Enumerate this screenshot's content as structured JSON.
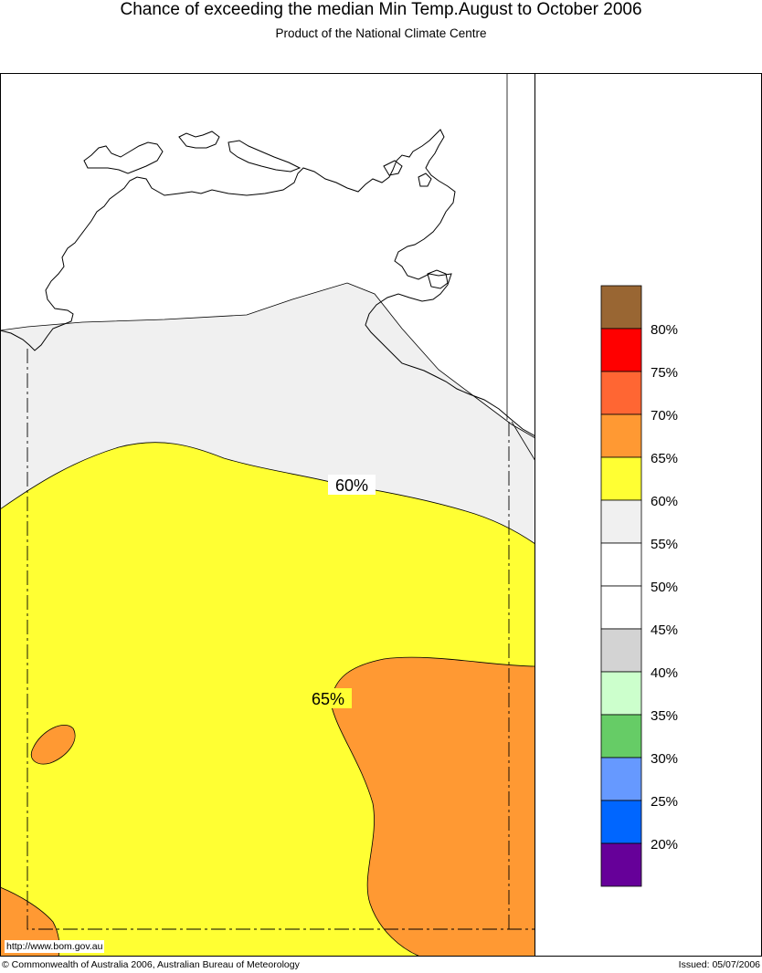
{
  "header": {
    "title": "Chance of exceeding the median Min Temp.August to October 2006",
    "subtitle": "Product of the National Climate Centre"
  },
  "map": {
    "contour_labels": [
      "60%",
      "65%"
    ],
    "zones": {
      "lt_55_color": "#ffffff",
      "55_60_color": "#f0f0f0",
      "60_65_color": "#ffff33",
      "65_70_color": "#ff9933"
    },
    "url": "http://www.bom.gov.au"
  },
  "legend": {
    "bins": [
      {
        "color": "#996633",
        "label": ""
      },
      {
        "color": "#ff0000",
        "label": "80%"
      },
      {
        "color": "#ff6633",
        "label": "75%"
      },
      {
        "color": "#ff9933",
        "label": "70%"
      },
      {
        "color": "#ffff33",
        "label": "65%"
      },
      {
        "color": "#f0f0f0",
        "label": "60%"
      },
      {
        "color": "#ffffff",
        "label": "55%"
      },
      {
        "color": "#ffffff",
        "label": "50%"
      },
      {
        "color": "#d3d3d3",
        "label": "45%"
      },
      {
        "color": "#ccffcc",
        "label": "40%"
      },
      {
        "color": "#66cc66",
        "label": "35%"
      },
      {
        "color": "#6699ff",
        "label": "30%"
      },
      {
        "color": "#0066ff",
        "label": "25%"
      },
      {
        "color": "#660099",
        "label": "20%"
      }
    ]
  },
  "footer": {
    "copyright": "© Commonwealth of Australia 2006, Australian Bureau of Meteorology",
    "issued": "Issued: 05/07/2006"
  }
}
